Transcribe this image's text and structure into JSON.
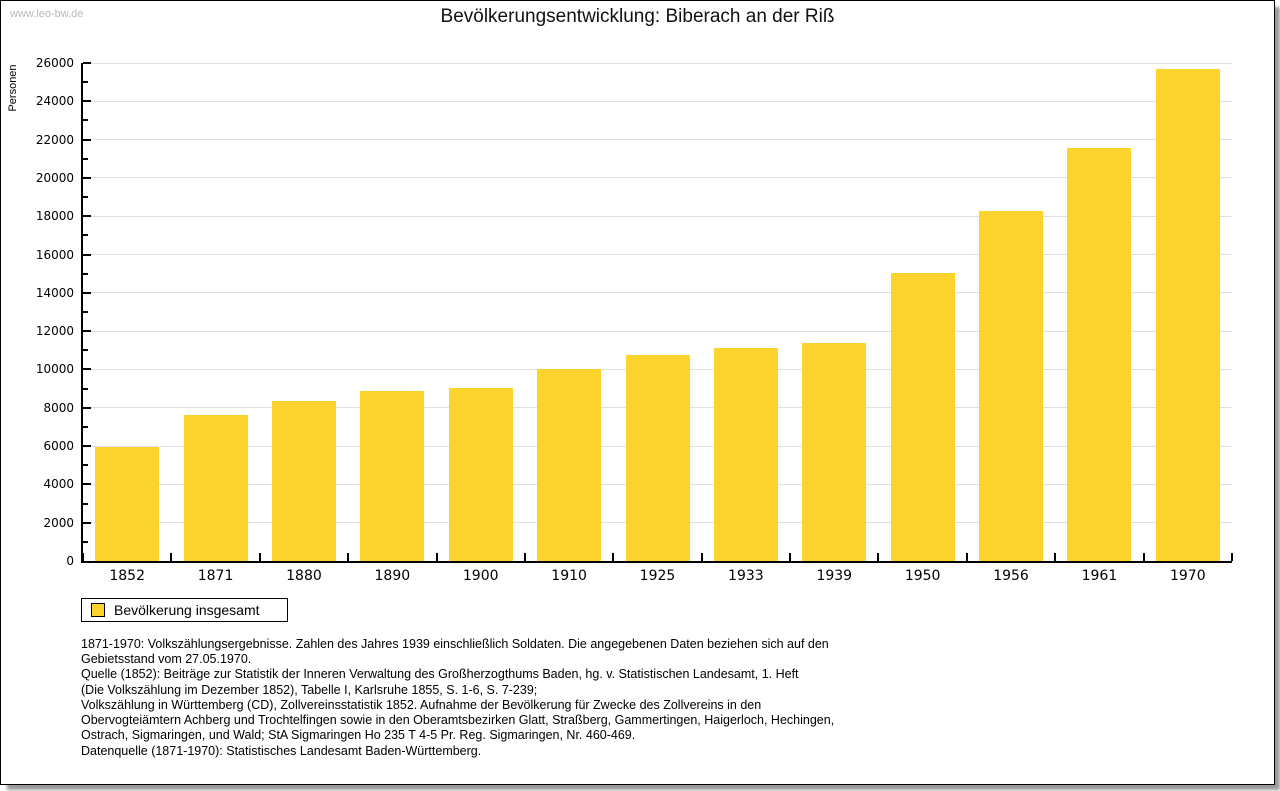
{
  "header": {
    "watermark": "www.leo-bw.de",
    "title": "Bevölkerungsentwicklung: Biberach an der Riß"
  },
  "legend": {
    "label": "Bevölkerung insgesamt"
  },
  "chart_data": {
    "type": "bar",
    "title": "Bevölkerungsentwicklung: Biberach an der Riß",
    "series_name": "Bevölkerung insgesamt",
    "categories": [
      "1852",
      "1871",
      "1880",
      "1890",
      "1900",
      "1910",
      "1925",
      "1933",
      "1939",
      "1950",
      "1956",
      "1961",
      "1970"
    ],
    "values": [
      5950,
      7600,
      8350,
      8850,
      9050,
      10050,
      10750,
      11100,
      11400,
      15050,
      18250,
      21550,
      25700
    ],
    "xlabel": "",
    "ylabel": "Personen",
    "ylim": [
      0,
      26000
    ],
    "ytick_step": 2000,
    "minor_tick_step": 1000,
    "grid": true,
    "legend_position": "bottom-left",
    "bar_color": "#fcd42d"
  },
  "colors": {
    "bar": "#fcd42d",
    "grid": "#dfdfdf",
    "axis": "#000000",
    "watermark": "#b9b9b9"
  },
  "footnotes": {
    "lines": [
      "1871-1970: Volkszählungsergebnisse. Zahlen des Jahres 1939 einschließlich Soldaten. Die angegebenen Daten beziehen sich auf den",
      "Gebietsstand vom 27.05.1970.",
      "Quelle (1852): Beiträge zur Statistik der Inneren Verwaltung des Großherzogthums Baden, hg. v. Statistischen Landesamt, 1. Heft",
      "(Die Volkszählung im Dezember 1852), Tabelle I, Karlsruhe 1855, S. 1-6, S. 7-239;",
      "Volkszählung in Württemberg (CD), Zollvereinsstatistik 1852. Aufnahme der Bevölkerung für Zwecke des Zollvereins in den",
      "Obervogteiämtern Achberg und Trochtelfingen sowie in den Oberamtsbezirken Glatt, Straßberg, Gammertingen, Haigerloch, Hechingen,",
      "Ostrach, Sigmaringen, und Wald; StA Sigmaringen Ho 235 T 4-5 Pr. Reg. Sigmaringen, Nr. 460-469."
    ],
    "datenquelle": "Datenquelle (1871-1970): Statistisches Landesamt Baden-Württemberg."
  }
}
